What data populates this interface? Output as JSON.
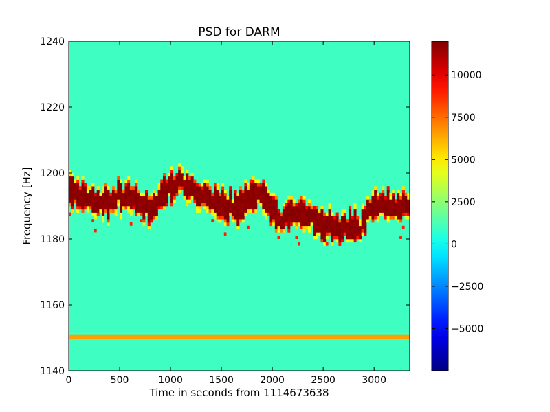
{
  "chart_data": {
    "type": "heatmap",
    "title": "PSD for DARM",
    "xlabel": "Time in seconds from 1114673638",
    "ylabel": "Frequency [Hz]",
    "xlim": [
      0,
      3350
    ],
    "ylim": [
      1140,
      1240
    ],
    "xticks": [
      0,
      500,
      1000,
      1500,
      2000,
      2500,
      3000
    ],
    "yticks": [
      1140,
      1160,
      1180,
      1200,
      1220,
      1240
    ],
    "grid": false,
    "colormap": "jet",
    "background_value": 1000,
    "colorbar": {
      "range": [
        -7500,
        12000
      ],
      "ticks": [
        -5000,
        -2500,
        0,
        2500,
        5000,
        7500,
        10000
      ]
    },
    "line_feature": {
      "frequency": 1150.3,
      "value": 6500,
      "x_range": [
        0,
        3350
      ]
    },
    "wandering_line_track": {
      "description_points": [
        {
          "x": 0,
          "y": 1196
        },
        {
          "x": 150,
          "y": 1192
        },
        {
          "x": 300,
          "y": 1190
        },
        {
          "x": 500,
          "y": 1193
        },
        {
          "x": 700,
          "y": 1190
        },
        {
          "x": 800,
          "y": 1188
        },
        {
          "x": 950,
          "y": 1194
        },
        {
          "x": 1100,
          "y": 1197
        },
        {
          "x": 1300,
          "y": 1193
        },
        {
          "x": 1500,
          "y": 1190
        },
        {
          "x": 1700,
          "y": 1189
        },
        {
          "x": 1850,
          "y": 1193
        },
        {
          "x": 1950,
          "y": 1192
        },
        {
          "x": 2050,
          "y": 1185
        },
        {
          "x": 2150,
          "y": 1187
        },
        {
          "x": 2350,
          "y": 1187
        },
        {
          "x": 2500,
          "y": 1184
        },
        {
          "x": 2700,
          "y": 1183
        },
        {
          "x": 2850,
          "y": 1182
        },
        {
          "x": 3000,
          "y": 1191
        },
        {
          "x": 3200,
          "y": 1190
        },
        {
          "x": 3350,
          "y": 1189
        }
      ]
    }
  }
}
